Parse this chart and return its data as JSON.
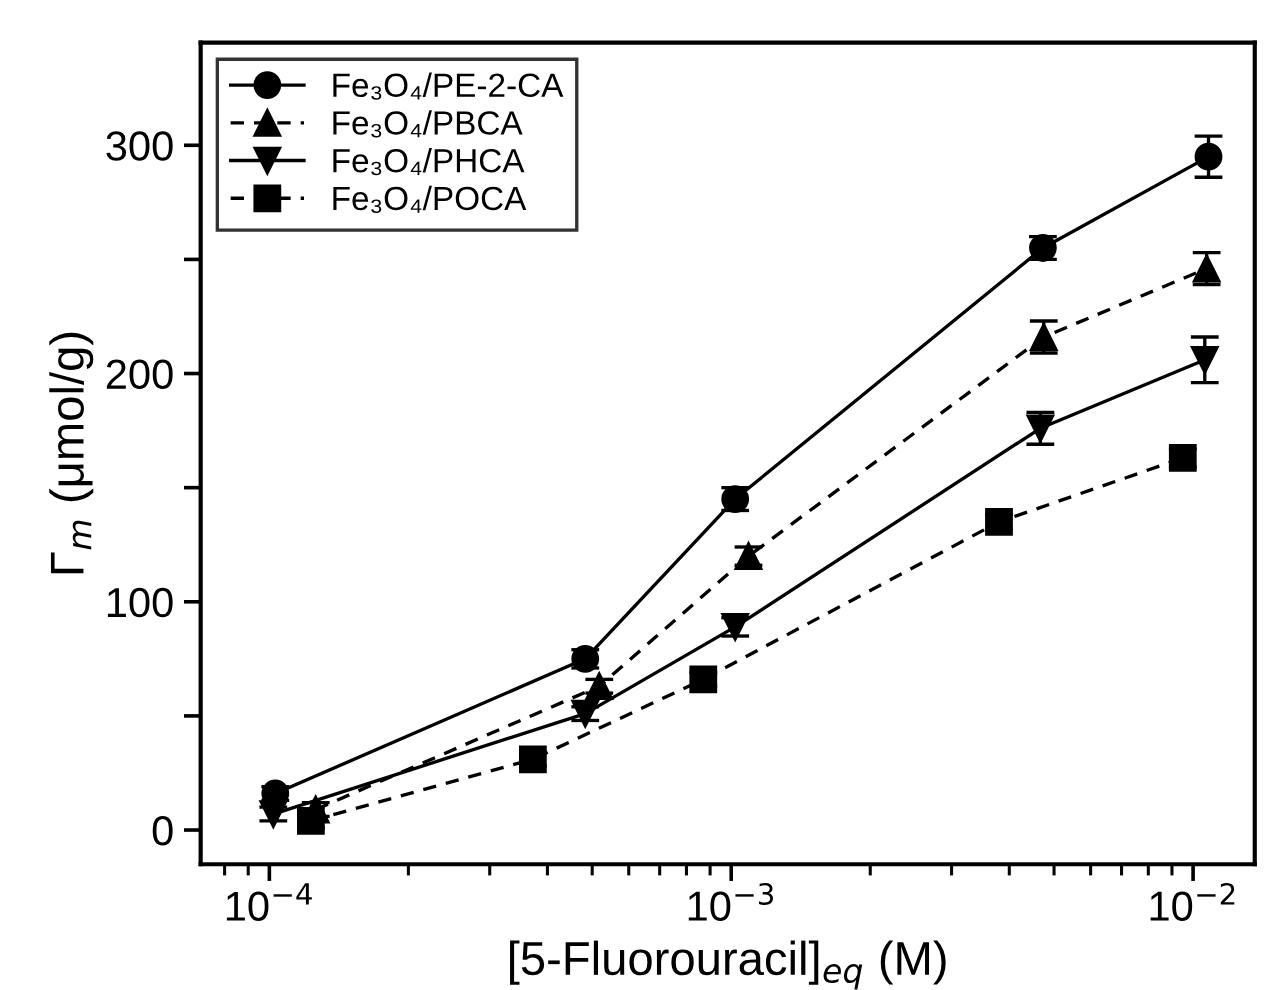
{
  "chart_data": {
    "type": "line",
    "xlabel": "[5-Fluorouracil]$_{eq}$ (M)",
    "ylabel": "Γ$_{m}$ (μmol/g)",
    "log": "x",
    "xlim": [
      7.1e-05,
      0.0136
    ],
    "ylim": [
      -15,
      345
    ],
    "xticks": [
      {
        "value": 0.0001,
        "label": "10$^{−4}$"
      },
      {
        "value": 0.001,
        "label": "10$^{−3}$"
      },
      {
        "value": 0.01,
        "label": "10$^{−2}$"
      }
    ],
    "yticks": [
      0,
      {
        "value": 50,
        "label": null
      },
      100,
      {
        "value": 150,
        "label": null
      },
      200,
      {
        "value": 250,
        "label": null
      },
      300
    ],
    "legend": "top left",
    "grid": false,
    "series": [
      {
        "name": "Fe₃O₄/PE-2-CA",
        "color": "#000000",
        "marker": "circle",
        "line_style": "solid",
        "x": [
          0.000103,
          0.000483,
          0.00102,
          0.00473,
          0.0108
        ],
        "values": [
          16,
          75,
          145,
          255,
          295
        ],
        "errors": [
          3,
          4,
          5,
          5,
          9
        ]
      },
      {
        "name": "Fe₃O₄/PBCA",
        "color": "#000000",
        "marker": "triangle",
        "line_style": "dashed",
        "x": [
          0.000126,
          0.000518,
          0.00109,
          0.00475,
          0.0107
        ],
        "values": [
          9,
          63,
          120,
          216,
          246
        ],
        "errors": [
          3,
          3,
          4,
          7,
          7
        ]
      },
      {
        "name": "Fe₃O₄/PHCA",
        "color": "#000000",
        "marker": "triangle_down",
        "line_style": "solid",
        "x": [
          0.000102,
          0.000483,
          0.00102,
          0.00467,
          0.0106
        ],
        "values": [
          7,
          51,
          89,
          176,
          206
        ],
        "errors": [
          3,
          3,
          4,
          7,
          10
        ]
      },
      {
        "name": "Fe₃O₄/POCA",
        "color": "#000000",
        "marker": "square",
        "line_style": "dashed",
        "x": [
          0.000123,
          0.000372,
          0.00087,
          0.0038,
          0.0095
        ],
        "values": [
          4,
          31,
          66,
          135,
          163
        ],
        "errors": [
          3,
          3,
          3,
          3,
          4
        ]
      }
    ]
  }
}
